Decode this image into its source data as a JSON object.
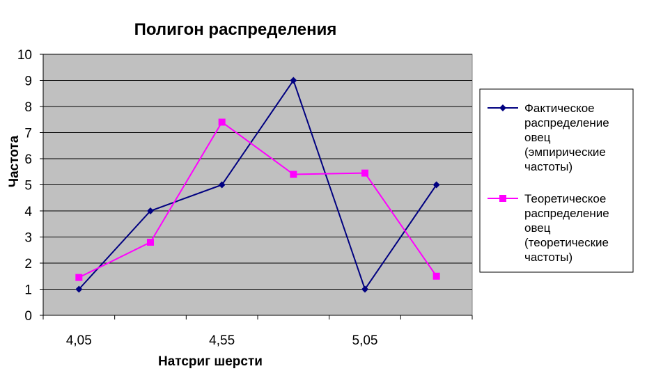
{
  "chart_data": {
    "type": "line",
    "title": "Полигон распределения",
    "xlabel": "Натсриг шерсти",
    "ylabel": "Частота",
    "ylim": [
      0,
      10
    ],
    "yticks": [
      "0",
      "1",
      "2",
      "3",
      "4",
      "5",
      "6",
      "7",
      "8",
      "9",
      "10"
    ],
    "categories": [
      "4,05",
      "",
      "4,55",
      "",
      "5,05",
      ""
    ],
    "x_tick_labels": [
      "4,05",
      "4,55",
      "5,05"
    ],
    "grid": true,
    "legend_position": "right",
    "series": [
      {
        "name": "Фактическое распределение овец (эмпирические частоты)",
        "legend_lines": [
          "Фактическое",
          "распределение",
          "овец",
          "(эмпирические",
          "частоты)"
        ],
        "values": [
          1,
          4,
          5,
          9,
          1,
          5
        ],
        "color": "#000080",
        "marker": "diamond"
      },
      {
        "name": "Теоретическое распределение овец (теоретические частоты)",
        "legend_lines": [
          "Теоретическое",
          "распределение",
          "овец",
          "(теоретические",
          "частоты)"
        ],
        "values": [
          1.45,
          2.8,
          7.4,
          5.4,
          5.45,
          1.5
        ],
        "color": "#FF00FF",
        "marker": "square"
      }
    ]
  }
}
